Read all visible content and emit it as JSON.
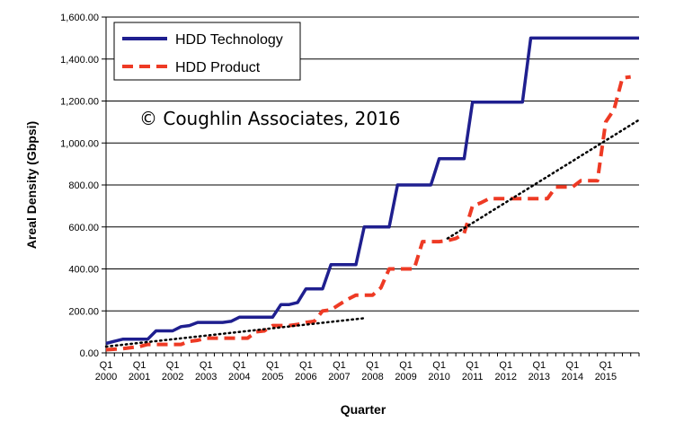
{
  "chart_data": {
    "type": "line",
    "title": "",
    "xlabel": "Quarter",
    "ylabel": "Areal Density (Gbpsi)",
    "ylim": [
      0,
      1600
    ],
    "yticks": [
      0,
      200,
      400,
      600,
      800,
      1000,
      1200,
      1400,
      1600
    ],
    "ytick_labels": [
      "0.00",
      "200.00",
      "400.00",
      "600.00",
      "800.00",
      "1,000.00",
      "1,200.00",
      "1,400.00",
      "1,600.00"
    ],
    "xticks": [
      {
        "q": "Q1",
        "year": "2000"
      },
      {
        "q": "Q1",
        "year": "2001"
      },
      {
        "q": "Q1",
        "year": "2002"
      },
      {
        "q": "Q1",
        "year": "2003"
      },
      {
        "q": "Q1",
        "year": "2004"
      },
      {
        "q": "Q1",
        "year": "2005"
      },
      {
        "q": "Q1",
        "year": "2006"
      },
      {
        "q": "Q1",
        "year": "2007"
      },
      {
        "q": "Q1",
        "year": "2008"
      },
      {
        "q": "Q1",
        "year": "2009"
      },
      {
        "q": "Q1",
        "year": "2010"
      },
      {
        "q": "Q1",
        "year": "2011"
      },
      {
        "q": "Q1",
        "year": "2012"
      },
      {
        "q": "Q1",
        "year": "2013"
      },
      {
        "q": "Q1",
        "year": "2014"
      },
      {
        "q": "Q1",
        "year": "2015"
      }
    ],
    "grid": "horizontal",
    "legend_position": "top-left",
    "annotation": "© Coughlin Associates, 2016",
    "series": [
      {
        "name": "HDD Technology",
        "color": "#1f1f8f",
        "style": "solid",
        "points": [
          [
            2000.0,
            45
          ],
          [
            2000.25,
            55
          ],
          [
            2000.5,
            65
          ],
          [
            2001.0,
            65
          ],
          [
            2001.25,
            65
          ],
          [
            2001.5,
            105
          ],
          [
            2002.0,
            105
          ],
          [
            2002.25,
            125
          ],
          [
            2002.5,
            130
          ],
          [
            2002.75,
            145
          ],
          [
            2003.5,
            145
          ],
          [
            2003.75,
            150
          ],
          [
            2004.0,
            170
          ],
          [
            2005.0,
            170
          ],
          [
            2005.25,
            230
          ],
          [
            2005.5,
            230
          ],
          [
            2005.75,
            240
          ],
          [
            2006.0,
            305
          ],
          [
            2006.5,
            305
          ],
          [
            2006.75,
            420
          ],
          [
            2007.5,
            420
          ],
          [
            2007.75,
            600
          ],
          [
            2008.5,
            600
          ],
          [
            2008.75,
            800
          ],
          [
            2009.75,
            800
          ],
          [
            2010.0,
            925
          ],
          [
            2010.75,
            925
          ],
          [
            2011.0,
            1195
          ],
          [
            2012.5,
            1195
          ],
          [
            2012.75,
            1500
          ],
          [
            2016.0,
            1500
          ]
        ]
      },
      {
        "name": "HDD Product",
        "color": "#ee3a24",
        "style": "dashed",
        "points": [
          [
            2000.0,
            15
          ],
          [
            2000.5,
            20
          ],
          [
            2001.0,
            30
          ],
          [
            2001.25,
            40
          ],
          [
            2002.25,
            40
          ],
          [
            2002.5,
            55
          ],
          [
            2002.75,
            60
          ],
          [
            2003.0,
            70
          ],
          [
            2004.0,
            70
          ],
          [
            2004.25,
            70
          ],
          [
            2004.5,
            100
          ],
          [
            2004.75,
            105
          ],
          [
            2005.0,
            130
          ],
          [
            2005.5,
            130
          ],
          [
            2005.75,
            135
          ],
          [
            2006.0,
            145
          ],
          [
            2006.25,
            150
          ],
          [
            2006.5,
            200
          ],
          [
            2006.75,
            205
          ],
          [
            2007.0,
            230
          ],
          [
            2007.25,
            255
          ],
          [
            2007.5,
            275
          ],
          [
            2008.0,
            275
          ],
          [
            2008.25,
            310
          ],
          [
            2008.5,
            400
          ],
          [
            2009.25,
            400
          ],
          [
            2009.5,
            530
          ],
          [
            2010.0,
            530
          ],
          [
            2010.25,
            535
          ],
          [
            2010.5,
            545
          ],
          [
            2010.75,
            570
          ],
          [
            2011.0,
            700
          ],
          [
            2011.25,
            715
          ],
          [
            2011.5,
            735
          ],
          [
            2013.25,
            735
          ],
          [
            2013.5,
            790
          ],
          [
            2014.0,
            790
          ],
          [
            2014.25,
            820
          ],
          [
            2014.75,
            820
          ],
          [
            2015.0,
            1100
          ],
          [
            2015.25,
            1160
          ],
          [
            2015.5,
            1310
          ],
          [
            2015.75,
            1315
          ]
        ]
      },
      {
        "color": "#000000",
        "style": "dotted",
        "points": [
          [
            2000.0,
            30
          ],
          [
            2007.75,
            165
          ]
        ]
      },
      {
        "color": "#000000",
        "style": "dotted",
        "points": [
          [
            2010.25,
            545
          ],
          [
            2016.0,
            1110
          ]
        ]
      }
    ]
  }
}
